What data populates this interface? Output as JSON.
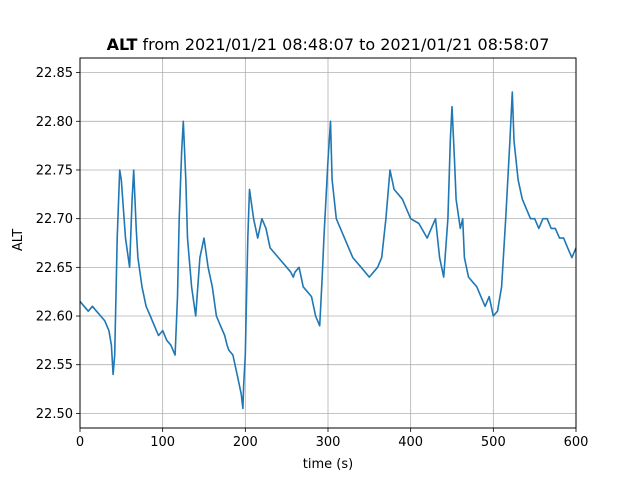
{
  "chart_data": {
    "type": "line",
    "title_bold": "ALT",
    "title_rest": " from 2021/01/21 08:48:07 to 2021/01/21 08:58:07",
    "xlabel": "time (s)",
    "ylabel": "ALT",
    "xlim": [
      0,
      600
    ],
    "ylim": [
      22.485,
      22.865
    ],
    "xticks": [
      0,
      100,
      200,
      300,
      400,
      500,
      600
    ],
    "yticks": [
      22.5,
      22.55,
      22.6,
      22.65,
      22.7,
      22.75,
      22.8,
      22.85
    ],
    "ytick_labels": [
      "22.50",
      "22.55",
      "22.60",
      "22.65",
      "22.70",
      "22.75",
      "22.80",
      "22.85"
    ],
    "grid": true,
    "line_color": "#1f77b4",
    "series": [
      {
        "x": [
          0,
          5,
          10,
          15,
          20,
          25,
          30,
          35,
          38,
          40,
          42,
          45,
          48,
          50,
          55,
          60,
          63,
          65,
          68,
          70,
          75,
          80,
          85,
          90,
          95,
          100,
          105,
          110,
          115,
          118,
          120,
          123,
          125,
          128,
          130,
          135,
          140,
          145,
          150,
          155,
          160,
          165,
          170,
          175,
          178,
          180,
          185,
          190,
          195,
          197,
          198,
          200,
          203,
          205,
          210,
          215,
          220,
          225,
          230,
          240,
          250,
          255,
          258,
          260,
          265,
          270,
          280,
          285,
          290,
          293,
          295,
          300,
          303,
          305,
          310,
          320,
          330,
          340,
          350,
          360,
          365,
          370,
          375,
          380,
          390,
          395,
          400,
          410,
          420,
          425,
          430,
          435,
          440,
          445,
          448,
          450,
          453,
          455,
          460,
          463,
          465,
          470,
          480,
          485,
          490,
          495,
          500,
          505,
          510,
          515,
          520,
          523,
          525,
          530,
          535,
          540,
          545,
          550,
          555,
          560,
          565,
          570,
          575,
          580,
          585,
          590,
          595,
          600
        ],
        "y": [
          22.615,
          22.61,
          22.605,
          22.61,
          22.605,
          22.6,
          22.595,
          22.585,
          22.57,
          22.54,
          22.56,
          22.68,
          22.75,
          22.74,
          22.68,
          22.65,
          22.72,
          22.75,
          22.69,
          22.66,
          22.63,
          22.61,
          22.6,
          22.59,
          22.58,
          22.585,
          22.575,
          22.57,
          22.56,
          22.62,
          22.7,
          22.77,
          22.8,
          22.74,
          22.68,
          22.63,
          22.6,
          22.66,
          22.68,
          22.65,
          22.63,
          22.6,
          22.59,
          22.58,
          22.57,
          22.565,
          22.56,
          22.54,
          22.52,
          22.505,
          22.53,
          22.56,
          22.68,
          22.73,
          22.7,
          22.68,
          22.7,
          22.69,
          22.67,
          22.66,
          22.65,
          22.645,
          22.64,
          22.645,
          22.65,
          22.63,
          22.62,
          22.6,
          22.59,
          22.64,
          22.68,
          22.76,
          22.8,
          22.74,
          22.7,
          22.68,
          22.66,
          22.65,
          22.64,
          22.65,
          22.66,
          22.7,
          22.75,
          22.73,
          22.72,
          22.71,
          22.7,
          22.695,
          22.68,
          22.69,
          22.7,
          22.66,
          22.64,
          22.7,
          22.78,
          22.815,
          22.76,
          22.72,
          22.69,
          22.7,
          22.66,
          22.64,
          22.63,
          22.62,
          22.61,
          22.62,
          22.6,
          22.605,
          22.63,
          22.7,
          22.78,
          22.83,
          22.78,
          22.74,
          22.72,
          22.71,
          22.7,
          22.7,
          22.69,
          22.7,
          22.7,
          22.69,
          22.69,
          22.68,
          22.68,
          22.67,
          22.66,
          22.67
        ]
      }
    ]
  }
}
